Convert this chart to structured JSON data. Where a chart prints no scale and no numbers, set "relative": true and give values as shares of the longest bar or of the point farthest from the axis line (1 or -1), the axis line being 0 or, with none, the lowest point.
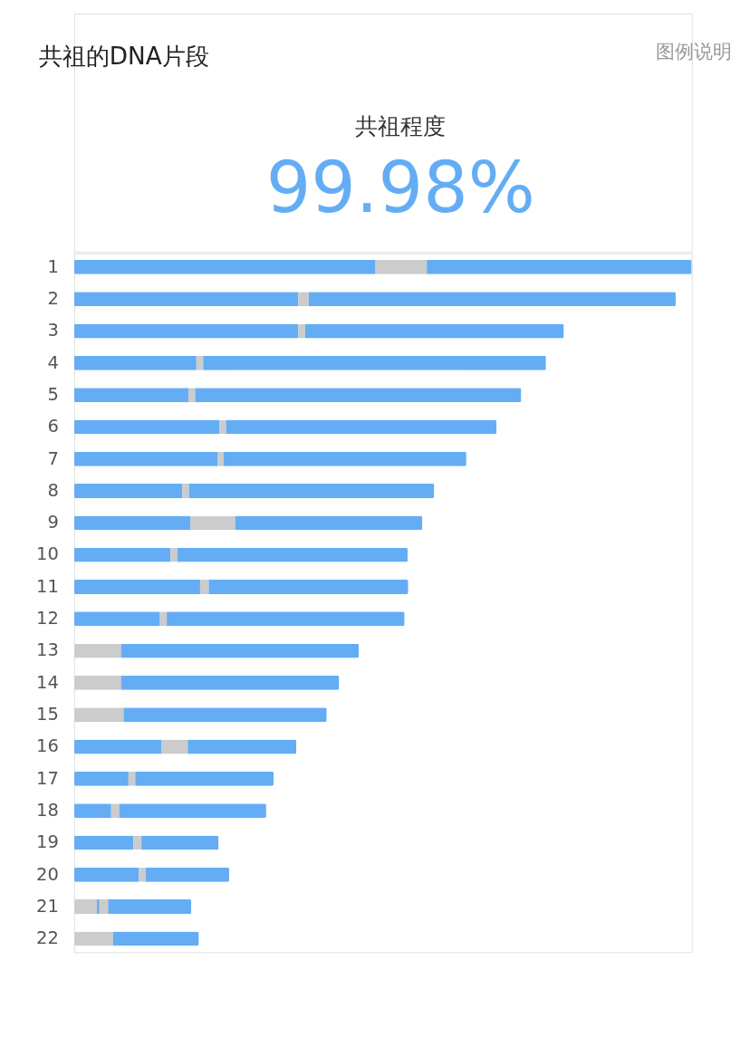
{
  "chart_data": {
    "type": "bar",
    "orientation": "horizontal",
    "stacked": true,
    "relative": true,
    "title": "共祖的DNA片段",
    "annotations": [
      "图例说明",
      "共祖程度",
      "99.98%"
    ],
    "categories": [
      "1",
      "2",
      "3",
      "4",
      "5",
      "6",
      "7",
      "8",
      "9",
      "10",
      "11",
      "12",
      "13",
      "14",
      "15",
      "16",
      "17",
      "18",
      "19",
      "20",
      "21",
      "22"
    ],
    "series": [
      {
        "color": "#cccccc",
        "values": [
          null,
          null,
          null,
          null,
          null,
          null,
          null,
          null,
          null,
          null,
          null,
          null,
          0.076,
          0.076,
          0.08,
          null,
          null,
          null,
          null,
          null,
          0.037,
          0.063
        ]
      },
      {
        "color": "#64adf5",
        "values": [
          0.488,
          0.363,
          0.363,
          0.198,
          0.185,
          0.235,
          0.232,
          0.175,
          0.188,
          0.156,
          0.204,
          0.139,
          0.385,
          0.353,
          0.329,
          0.141,
          0.088,
          0.06,
          0.096,
          0.105,
          0.004,
          0.139
        ]
      },
      {
        "color": "#cccccc",
        "values": [
          0.083,
          0.017,
          0.011,
          0.011,
          0.011,
          0.011,
          0.01,
          0.011,
          0.073,
          0.011,
          0.014,
          0.011,
          null,
          null,
          null,
          0.043,
          0.011,
          0.013,
          0.013,
          0.011,
          0.014,
          null
        ]
      },
      {
        "color": "#64adf5",
        "values": [
          0.429,
          0.594,
          0.419,
          0.555,
          0.528,
          0.438,
          0.393,
          0.397,
          0.303,
          0.373,
          0.323,
          0.385,
          null,
          null,
          null,
          0.176,
          0.224,
          0.238,
          0.125,
          0.135,
          0.135,
          null
        ]
      }
    ],
    "legend": false
  }
}
